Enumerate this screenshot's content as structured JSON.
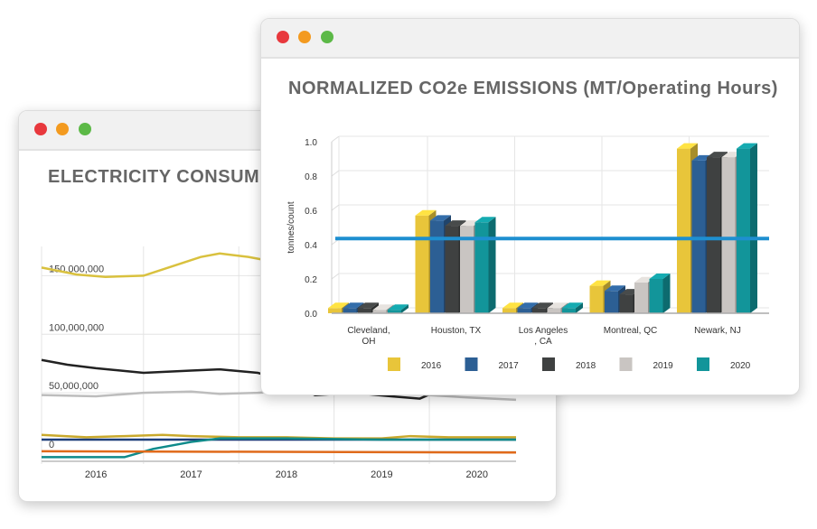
{
  "window_controls": {
    "close_color": "#e8383d",
    "minimize_color": "#f39a1f",
    "maximize_color": "#5cb947"
  },
  "chart_data": [
    {
      "type": "line",
      "title": "ELECTRICITY CONSUM",
      "y_tick_labels": [
        "0",
        "50,000,000",
        "100,000,000",
        "150,000,000"
      ],
      "y_ticks": [
        0,
        50000000,
        100000000,
        150000000
      ],
      "x_tick_labels": [
        "2016",
        "2017",
        "2018",
        "2019",
        "2020"
      ],
      "grid": true,
      "series": [
        {
          "color": "#d9c13e",
          "points": [
            [
              2015.93,
              157
            ],
            [
              2016.3,
              151
            ],
            [
              2016.6,
              149
            ],
            [
              2017.0,
              150
            ],
            [
              2017.3,
              158
            ],
            [
              2017.6,
              166
            ],
            [
              2017.8,
              169
            ],
            [
              2018.1,
              166
            ],
            [
              2018.5,
              160
            ],
            [
              2019,
              158
            ],
            [
              2019.5,
              157
            ],
            [
              2020,
              156
            ],
            [
              2020.91,
              155
            ]
          ]
        },
        {
          "color": "#222222",
          "points": [
            [
              2015.93,
              78
            ],
            [
              2016.2,
              74
            ],
            [
              2016.5,
              71
            ],
            [
              2017.0,
              67
            ],
            [
              2017.5,
              69
            ],
            [
              2017.8,
              70
            ],
            [
              2018.2,
              67
            ],
            [
              2018.5,
              60
            ],
            [
              2018.8,
              48
            ],
            [
              2019.2,
              50
            ],
            [
              2019.6,
              47
            ],
            [
              2019.9,
              45
            ],
            [
              2020.1,
              52
            ],
            [
              2020.2,
              56
            ]
          ]
        },
        {
          "color": "#bdbdbd",
          "points": [
            [
              2015.93,
              48
            ],
            [
              2016.5,
              47
            ],
            [
              2017.0,
              50
            ],
            [
              2017.5,
              51
            ],
            [
              2017.8,
              49
            ],
            [
              2018.2,
              50
            ],
            [
              2018.6,
              52
            ],
            [
              2019.2,
              52
            ],
            [
              2019.6,
              51
            ],
            [
              2020.0,
              48
            ],
            [
              2020.4,
              46
            ],
            [
              2020.91,
              44
            ]
          ]
        },
        {
          "color": "#c9a92c",
          "points": [
            [
              2015.93,
              14
            ],
            [
              2016.4,
              12
            ],
            [
              2016.8,
              13
            ],
            [
              2017.2,
              14
            ],
            [
              2017.5,
              13
            ],
            [
              2018,
              12
            ],
            [
              2018.5,
              12
            ],
            [
              2019,
              11
            ],
            [
              2019.5,
              11
            ],
            [
              2019.8,
              13
            ],
            [
              2020.2,
              12
            ],
            [
              2020.91,
              12
            ]
          ]
        },
        {
          "color": "#1e3f7a",
          "points": [
            [
              2015.93,
              10
            ],
            [
              2020.91,
              10
            ]
          ]
        },
        {
          "color": "#0e8a8a",
          "points": [
            [
              2015.93,
              -5
            ],
            [
              2016.8,
              -5
            ],
            [
              2017.1,
              2
            ],
            [
              2017.5,
              8
            ],
            [
              2017.8,
              11
            ],
            [
              2018.5,
              11
            ],
            [
              2019.5,
              10
            ],
            [
              2020.91,
              10
            ]
          ]
        },
        {
          "color": "#e06a1a",
          "points": [
            [
              2015.93,
              0
            ],
            [
              2020.91,
              -1
            ]
          ]
        }
      ],
      "y_unit_scale": 1000000,
      "xlim": [
        2015.93,
        2020.91
      ],
      "ylim": [
        -7000000,
        175000000
      ]
    },
    {
      "type": "bar",
      "style": "3d-grouped",
      "title": "NORMALIZED CO2e EMISSIONS (MT/Operating Hours)",
      "ylabel": "tonnes/count",
      "y_tick_labels": [
        "0.0",
        "0.2",
        "0.4",
        "0.6",
        "0.8",
        "1.0"
      ],
      "ylim": [
        0,
        1.0
      ],
      "grid": true,
      "categories": [
        "Cleveland,\nOH",
        "Houston, TX",
        "Los Angeles\n, CA",
        "Montreal, QC",
        "Newark, NJ"
      ],
      "series": [
        {
          "name": "2016",
          "color": "#e8c53a",
          "values": [
            0.03,
            0.57,
            0.03,
            0.16,
            0.96
          ]
        },
        {
          "name": "2017",
          "color": "#2c5f94",
          "values": [
            0.03,
            0.54,
            0.03,
            0.13,
            0.89
          ]
        },
        {
          "name": "2018",
          "color": "#3f4141",
          "values": [
            0.03,
            0.51,
            0.03,
            0.11,
            0.91
          ]
        },
        {
          "name": "2019",
          "color": "#c9c5c2",
          "values": [
            0.02,
            0.51,
            0.03,
            0.18,
            0.91
          ]
        },
        {
          "name": "2020",
          "color": "#12959a",
          "values": [
            0.02,
            0.53,
            0.03,
            0.2,
            0.96
          ]
        }
      ],
      "reference_line": {
        "value": 0.42,
        "color": "#1e8fd0"
      },
      "legend": "bottom"
    }
  ]
}
